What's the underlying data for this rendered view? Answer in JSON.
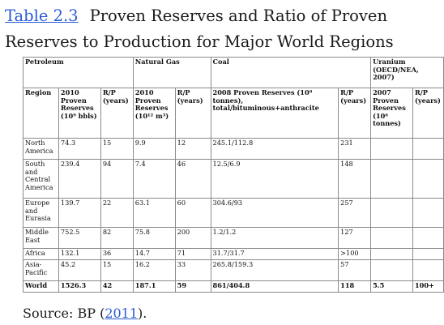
{
  "caption": {
    "link": "Table 2.3",
    "title_line1": "Proven Reserves and Ratio of Proven",
    "title_line2": "Reserves to Production for Major World Regions"
  },
  "groups": {
    "petroleum": "Petroleum",
    "natural_gas": "Natural Gas",
    "coal": "Coal",
    "uranium": "Uranium (OECD/NEA, 2007)"
  },
  "headers": {
    "region": "Region",
    "pet_res": "2010 Proven Reserves (10⁹ bbls)",
    "pet_rp": "R/P (years)",
    "gas_res": "2010 Proven Reserves (10¹² m³)",
    "gas_rp": "R/P (years)",
    "coal_res": "2008 Proven Reserves (10⁹ tonnes), total/bituminous+anthracite",
    "coal_rp": "R/P (years)",
    "ura_res": "2007 Proven Reserves (10⁶ tonnes)",
    "ura_rp": "R/P (years)"
  },
  "rows": [
    {
      "region": "North America",
      "pet_res": "74.3",
      "pet_rp": "15",
      "gas_res": "9.9",
      "gas_rp": "12",
      "coal_res": "245.1/112.8",
      "coal_rp": "231",
      "ura_res": "",
      "ura_rp": ""
    },
    {
      "region": "South and Central America",
      "pet_res": "239.4",
      "pet_rp": "94",
      "gas_res": "7.4",
      "gas_rp": "46",
      "coal_res": "12.5/6.9",
      "coal_rp": "148",
      "ura_res": "",
      "ura_rp": ""
    },
    {
      "region": "Europe and Eurasia",
      "pet_res": "139.7",
      "pet_rp": "22",
      "gas_res": "63.1",
      "gas_rp": "60",
      "coal_res": "304.6/93",
      "coal_rp": "257",
      "ura_res": "",
      "ura_rp": ""
    },
    {
      "region": "Middle East",
      "pet_res": "752.5",
      "pet_rp": "82",
      "gas_res": "75.8",
      "gas_rp": "200",
      "coal_res": "1.2/1.2",
      "coal_rp": "127",
      "ura_res": "",
      "ura_rp": ""
    },
    {
      "region": "Africa",
      "pet_res": "132.1",
      "pet_rp": "36",
      "gas_res": "14.7",
      "gas_rp": "71",
      "coal_res": "31.7/31.7",
      "coal_rp": ">100",
      "ura_res": "",
      "ura_rp": ""
    },
    {
      "region": "Asia-Pacific",
      "pet_res": "45.2",
      "pet_rp": "15",
      "gas_res": "16.2",
      "gas_rp": "33",
      "coal_res": "265.8/159.3",
      "coal_rp": "57",
      "ura_res": "",
      "ura_rp": ""
    },
    {
      "region": "World",
      "pet_res": "1526.3",
      "pet_rp": "42",
      "gas_res": "187.1",
      "gas_rp": "59",
      "coal_res": "861/404.8",
      "coal_rp": "118",
      "ura_res": "5.5",
      "ura_rp": "100+"
    }
  ],
  "source": {
    "prefix": "Source: BP (",
    "link": "2011",
    "suffix": ")."
  }
}
